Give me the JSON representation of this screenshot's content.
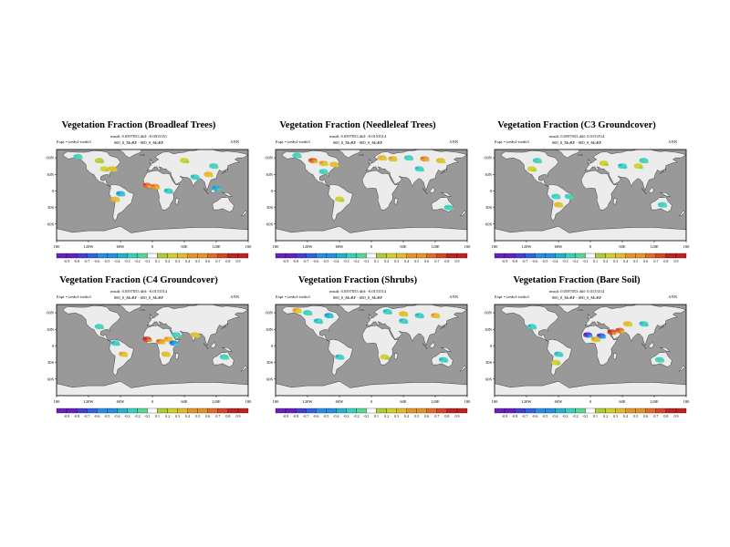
{
  "colors": {
    "ocean": "#999999",
    "land": "#ececec",
    "frame": "#000000",
    "scale": [
      "#6a1fbf",
      "#4a3bd6",
      "#2e62e6",
      "#2590e6",
      "#22b3d3",
      "#3bcfc3",
      "#56d89c",
      "#7fd06a",
      "#a9cf37",
      "#d0d12a",
      "#e6b92a",
      "#e8942a",
      "#e06d28",
      "#d4462a",
      "#c22222"
    ]
  },
  "panels": [
    {
      "title": "Vegetation Fraction (Broadleaf Trees)",
      "stats": "rmsdi: 0.0597053  diff: -0.0015351",
      "expt": "Expt = tredu1-tredu3",
      "diff": "000_0_MoBF - 000_0_MoBF",
      "tag": "ANN"
    },
    {
      "title": "Vegetation Fraction (Needleleaf Trees)",
      "stats": "rmsdi: 0.0597053  diff: -0.0153514",
      "expt": "Expt = tredu1-tredu3",
      "diff": "000_0_MoBF - 000_0_MoBF",
      "tag": "ANN"
    },
    {
      "title": "Vegetation Fraction (C3 Groundcover)",
      "stats": "rmsdi: 0.0597053  diff: 0.0153514",
      "expt": "Expt = tredu1-tredu3",
      "diff": "000_0_MoBF - 000_0_MoBF",
      "tag": "ANN"
    },
    {
      "title": "Vegetation Fraction (C4 Groundcover)",
      "stats": "rmsdi: 0.0597053  diff: -0.0153514",
      "expt": "Expt = tredu1-tredu3",
      "diff": "000_0_MoBF - 000_0_MoBF",
      "tag": "ANN"
    },
    {
      "title": "Vegetation Fraction (Shrubs)",
      "stats": "rmsdi: 0.0597053  diff: -0.0153514",
      "expt": "Expt = tredu1-tredu3",
      "diff": "000_0_MoBF - 000_0_MoBF",
      "tag": "ANN"
    },
    {
      "title": "Vegetation Fraction (Bare Soil)",
      "stats": "rmsdi: 0.0597053  diff: 0.0153514",
      "expt": "Expt = tredu1-tredu3",
      "diff": "000_0_MoBF - 000_0_MoBF",
      "tag": "ANN"
    }
  ],
  "chart_data": {
    "type": "heatmap",
    "panel_count": 6,
    "x_ticks": [
      "180",
      "120W",
      "60W",
      "0",
      "60E",
      "120E",
      "180"
    ],
    "y_ticks": [
      "60N",
      "30N",
      "0",
      "30S",
      "60S"
    ],
    "colorbar_labels": [
      "-0.9",
      "-0.8",
      "-0.7",
      "-0.6",
      "-0.5",
      "-0.4",
      "-0.3",
      "-0.2",
      "-0.1",
      "0.1",
      "0.2",
      "0.3",
      "0.4",
      "0.5",
      "0.6",
      "0.7",
      "0.8",
      "0.9"
    ],
    "colorbar_range": [
      -0.9,
      0.9
    ],
    "hotspots": [
      [
        {
          "lon": -90,
          "lat": 40,
          "v": 0.2
        },
        {
          "lon": -75,
          "lat": 40,
          "v": 0.3
        },
        {
          "lon": -60,
          "lat": -5,
          "v": -0.4
        },
        {
          "lon": -70,
          "lat": -15,
          "v": 0.3
        },
        {
          "lon": -10,
          "lat": 10,
          "v": 0.6
        },
        {
          "lon": 5,
          "lat": 8,
          "v": 0.5
        },
        {
          "lon": 30,
          "lat": 0,
          "v": -0.3
        },
        {
          "lon": 80,
          "lat": 25,
          "v": -0.3
        },
        {
          "lon": 105,
          "lat": 30,
          "v": 0.3
        },
        {
          "lon": 115,
          "lat": 45,
          "v": -0.2
        },
        {
          "lon": 60,
          "lat": 55,
          "v": 0.2
        },
        {
          "lon": -100,
          "lat": 55,
          "v": 0.15
        },
        {
          "lon": 120,
          "lat": 5,
          "v": -0.4
        },
        {
          "lon": -140,
          "lat": 62,
          "v": -0.2
        }
      ],
      [
        {
          "lon": -110,
          "lat": 55,
          "v": 0.6
        },
        {
          "lon": -90,
          "lat": 50,
          "v": 0.4
        },
        {
          "lon": -70,
          "lat": 48,
          "v": 0.3
        },
        {
          "lon": -140,
          "lat": 64,
          "v": -0.2
        },
        {
          "lon": 20,
          "lat": 60,
          "v": 0.3
        },
        {
          "lon": 40,
          "lat": 58,
          "v": 0.4
        },
        {
          "lon": 70,
          "lat": 60,
          "v": -0.2
        },
        {
          "lon": 100,
          "lat": 58,
          "v": 0.5
        },
        {
          "lon": 130,
          "lat": 55,
          "v": 0.3
        },
        {
          "lon": 90,
          "lat": 40,
          "v": -0.3
        },
        {
          "lon": -60,
          "lat": -15,
          "v": 0.2
        },
        {
          "lon": -90,
          "lat": 35,
          "v": -0.2
        },
        {
          "lon": 145,
          "lat": -30,
          "v": -0.2
        }
      ],
      [
        {
          "lon": -100,
          "lat": 55,
          "v": -0.2
        },
        {
          "lon": -110,
          "lat": 40,
          "v": 0.2
        },
        {
          "lon": -60,
          "lat": -25,
          "v": 0.3
        },
        {
          "lon": -65,
          "lat": -10,
          "v": -0.2
        },
        {
          "lon": 25,
          "lat": 50,
          "v": 0.2
        },
        {
          "lon": 60,
          "lat": 45,
          "v": -0.3
        },
        {
          "lon": 90,
          "lat": 45,
          "v": 0.2
        },
        {
          "lon": 100,
          "lat": 55,
          "v": -0.2
        },
        {
          "lon": -40,
          "lat": -10,
          "v": -0.2
        },
        {
          "lon": 135,
          "lat": -25,
          "v": -0.2
        }
      ],
      [
        {
          "lon": -10,
          "lat": 12,
          "v": 0.7
        },
        {
          "lon": 15,
          "lat": 8,
          "v": 0.5
        },
        {
          "lon": 30,
          "lat": 12,
          "v": 0.4
        },
        {
          "lon": 40,
          "lat": 5,
          "v": -0.5
        },
        {
          "lon": 45,
          "lat": 20,
          "v": -0.2
        },
        {
          "lon": -55,
          "lat": -15,
          "v": 0.4
        },
        {
          "lon": -70,
          "lat": 5,
          "v": -0.3
        },
        {
          "lon": -100,
          "lat": 35,
          "v": -0.2
        },
        {
          "lon": 80,
          "lat": 20,
          "v": 0.3
        },
        {
          "lon": 25,
          "lat": -15,
          "v": 0.3
        },
        {
          "lon": 135,
          "lat": -20,
          "v": -0.2
        }
      ],
      [
        {
          "lon": -100,
          "lat": 45,
          "v": -0.3
        },
        {
          "lon": -120,
          "lat": 60,
          "v": -0.2
        },
        {
          "lon": -80,
          "lat": 55,
          "v": -0.4
        },
        {
          "lon": -140,
          "lat": 64,
          "v": 0.4
        },
        {
          "lon": 30,
          "lat": 62,
          "v": -0.3
        },
        {
          "lon": 60,
          "lat": 58,
          "v": 0.3
        },
        {
          "lon": 90,
          "lat": 55,
          "v": -0.3
        },
        {
          "lon": 120,
          "lat": 55,
          "v": 0.4
        },
        {
          "lon": 60,
          "lat": 45,
          "v": -0.3
        },
        {
          "lon": -60,
          "lat": -20,
          "v": -0.3
        },
        {
          "lon": 25,
          "lat": -20,
          "v": 0.2
        },
        {
          "lon": 135,
          "lat": -25,
          "v": -0.3
        }
      ],
      [
        {
          "lon": -5,
          "lat": 20,
          "v": -0.7
        },
        {
          "lon": 20,
          "lat": 18,
          "v": -0.6
        },
        {
          "lon": 40,
          "lat": 25,
          "v": 0.7
        },
        {
          "lon": 55,
          "lat": 28,
          "v": 0.6
        },
        {
          "lon": 10,
          "lat": 12,
          "v": 0.4
        },
        {
          "lon": -60,
          "lat": -15,
          "v": -0.3
        },
        {
          "lon": -65,
          "lat": -30,
          "v": 0.2
        },
        {
          "lon": 70,
          "lat": 40,
          "v": 0.3
        },
        {
          "lon": 100,
          "lat": 40,
          "v": -0.3
        },
        {
          "lon": 130,
          "lat": -25,
          "v": -0.2
        },
        {
          "lon": -110,
          "lat": 35,
          "v": -0.3
        }
      ]
    ]
  }
}
